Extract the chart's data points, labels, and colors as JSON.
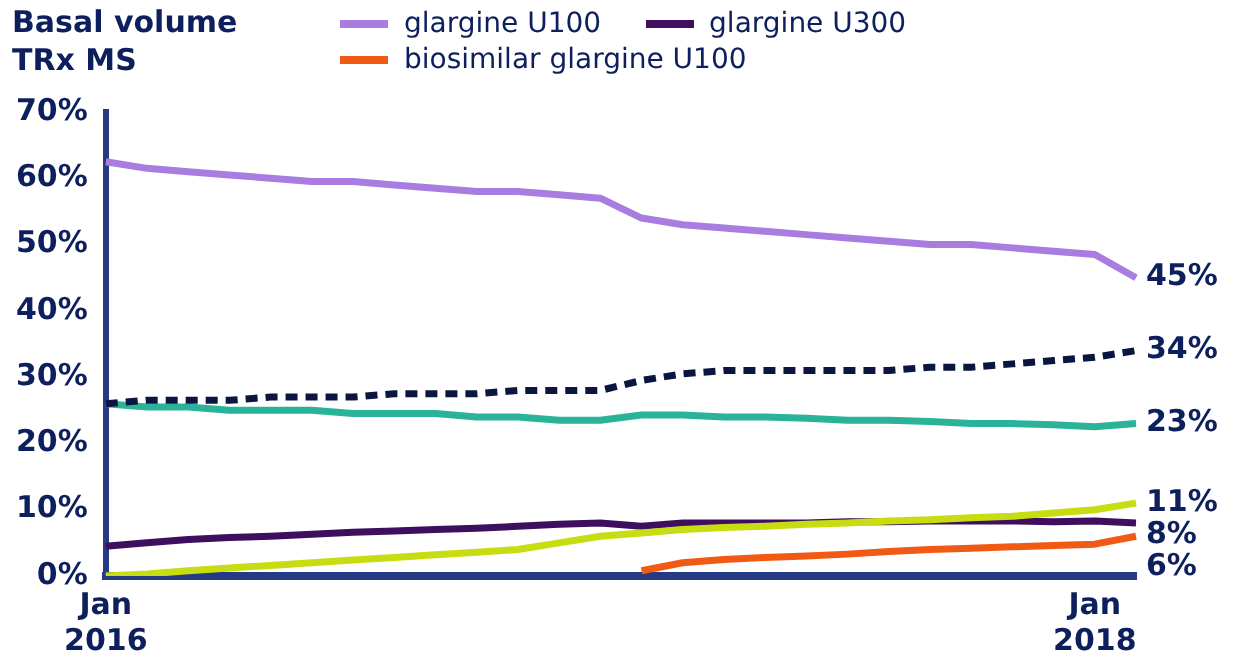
{
  "chart_data": {
    "type": "line",
    "title": "Basal volume TRx MS",
    "legend": "top",
    "grid": false,
    "marker": "none",
    "categories": [
      "Jan 2016",
      null,
      null,
      null,
      null,
      null,
      null,
      null,
      null,
      null,
      null,
      null,
      null,
      null,
      null,
      null,
      null,
      null,
      null,
      null,
      null,
      null,
      null,
      null,
      "Jan 2018",
      null
    ],
    "ylim": [
      0,
      70
    ],
    "yticks": [
      {
        "value": 0,
        "label": "0%"
      },
      {
        "value": 10,
        "label": "10%"
      },
      {
        "value": 20,
        "label": "20%"
      },
      {
        "value": 30,
        "label": "30%"
      },
      {
        "value": 40,
        "label": "40%"
      },
      {
        "value": 50,
        "label": "50%"
      },
      {
        "value": 60,
        "label": "60%"
      },
      {
        "value": 70,
        "label": "70%"
      }
    ],
    "series": [
      {
        "name": "glargine U100",
        "color": "#a97de0",
        "values": [
          62.5,
          61.5,
          61,
          60.5,
          60,
          59.5,
          59.5,
          59,
          58.5,
          58,
          58,
          57.5,
          57,
          54,
          53,
          52.5,
          52,
          51.5,
          51,
          50.5,
          50,
          50,
          49.5,
          49,
          48.5,
          45
        ],
        "value_labels": [
          null,
          null,
          null,
          null,
          null,
          null,
          null,
          null,
          null,
          null,
          null,
          null,
          null,
          null,
          null,
          null,
          null,
          null,
          null,
          null,
          null,
          null,
          null,
          null,
          null,
          "45%"
        ]
      },
      {
        "color": "#0b1640",
        "line_style": "dashed",
        "values": [
          26,
          26.5,
          26.5,
          26.5,
          27,
          27,
          27,
          27.5,
          27.5,
          27.5,
          28,
          28,
          28,
          29.5,
          30.5,
          31,
          31,
          31,
          31,
          31,
          31.5,
          31.5,
          32,
          32.5,
          33,
          34
        ],
        "value_labels": [
          null,
          null,
          null,
          null,
          null,
          null,
          null,
          null,
          null,
          null,
          null,
          null,
          null,
          null,
          null,
          null,
          null,
          null,
          null,
          null,
          null,
          null,
          null,
          null,
          null,
          "34%"
        ]
      },
      {
        "color": "#2bb39a",
        "values": [
          26,
          25.5,
          25.5,
          25,
          25,
          25,
          24.5,
          24.5,
          24.5,
          24,
          24,
          23.5,
          23.5,
          24.3,
          24.3,
          24,
          24,
          23.8,
          23.5,
          23.5,
          23.3,
          23,
          23,
          22.8,
          22.5,
          23
        ],
        "value_labels": [
          null,
          null,
          null,
          null,
          null,
          null,
          null,
          null,
          null,
          null,
          null,
          null,
          null,
          null,
          null,
          null,
          null,
          null,
          null,
          null,
          null,
          null,
          null,
          null,
          null,
          "23%"
        ]
      },
      {
        "color": "#c8dc12",
        "values": [
          0,
          0.3,
          0.8,
          1.2,
          1.6,
          2,
          2.4,
          2.8,
          3.2,
          3.6,
          4,
          5,
          6,
          6.5,
          7,
          7.3,
          7.5,
          7.8,
          8,
          8.3,
          8.5,
          8.8,
          9,
          9.5,
          10,
          11
        ],
        "value_labels": [
          null,
          null,
          null,
          null,
          null,
          null,
          null,
          null,
          null,
          null,
          null,
          null,
          null,
          null,
          null,
          null,
          null,
          null,
          null,
          null,
          null,
          null,
          null,
          null,
          null,
          "11%"
        ]
      },
      {
        "name": "glargine U300",
        "color": "#3d0f5e",
        "values": [
          4.5,
          5,
          5.5,
          5.8,
          6,
          6.3,
          6.6,
          6.8,
          7,
          7.2,
          7.5,
          7.8,
          8,
          7.5,
          8,
          8,
          8,
          8,
          8.2,
          8.2,
          8.3,
          8.3,
          8.3,
          8.2,
          8.3,
          8
        ],
        "value_labels": [
          null,
          null,
          null,
          null,
          null,
          null,
          null,
          null,
          null,
          null,
          null,
          null,
          null,
          null,
          null,
          null,
          null,
          null,
          null,
          null,
          null,
          null,
          null,
          null,
          null,
          "8%"
        ]
      },
      {
        "name": "biosimilar glargine U100",
        "color": "#f05a14",
        "values": [
          null,
          null,
          null,
          null,
          null,
          null,
          null,
          null,
          null,
          null,
          null,
          null,
          null,
          0.8,
          2,
          2.5,
          2.8,
          3,
          3.3,
          3.7,
          4,
          4.2,
          4.4,
          4.6,
          4.8,
          6
        ],
        "value_labels": [
          null,
          null,
          null,
          null,
          null,
          null,
          null,
          null,
          null,
          null,
          null,
          null,
          null,
          null,
          null,
          null,
          null,
          null,
          null,
          null,
          null,
          null,
          null,
          null,
          null,
          "6%"
        ]
      }
    ]
  }
}
